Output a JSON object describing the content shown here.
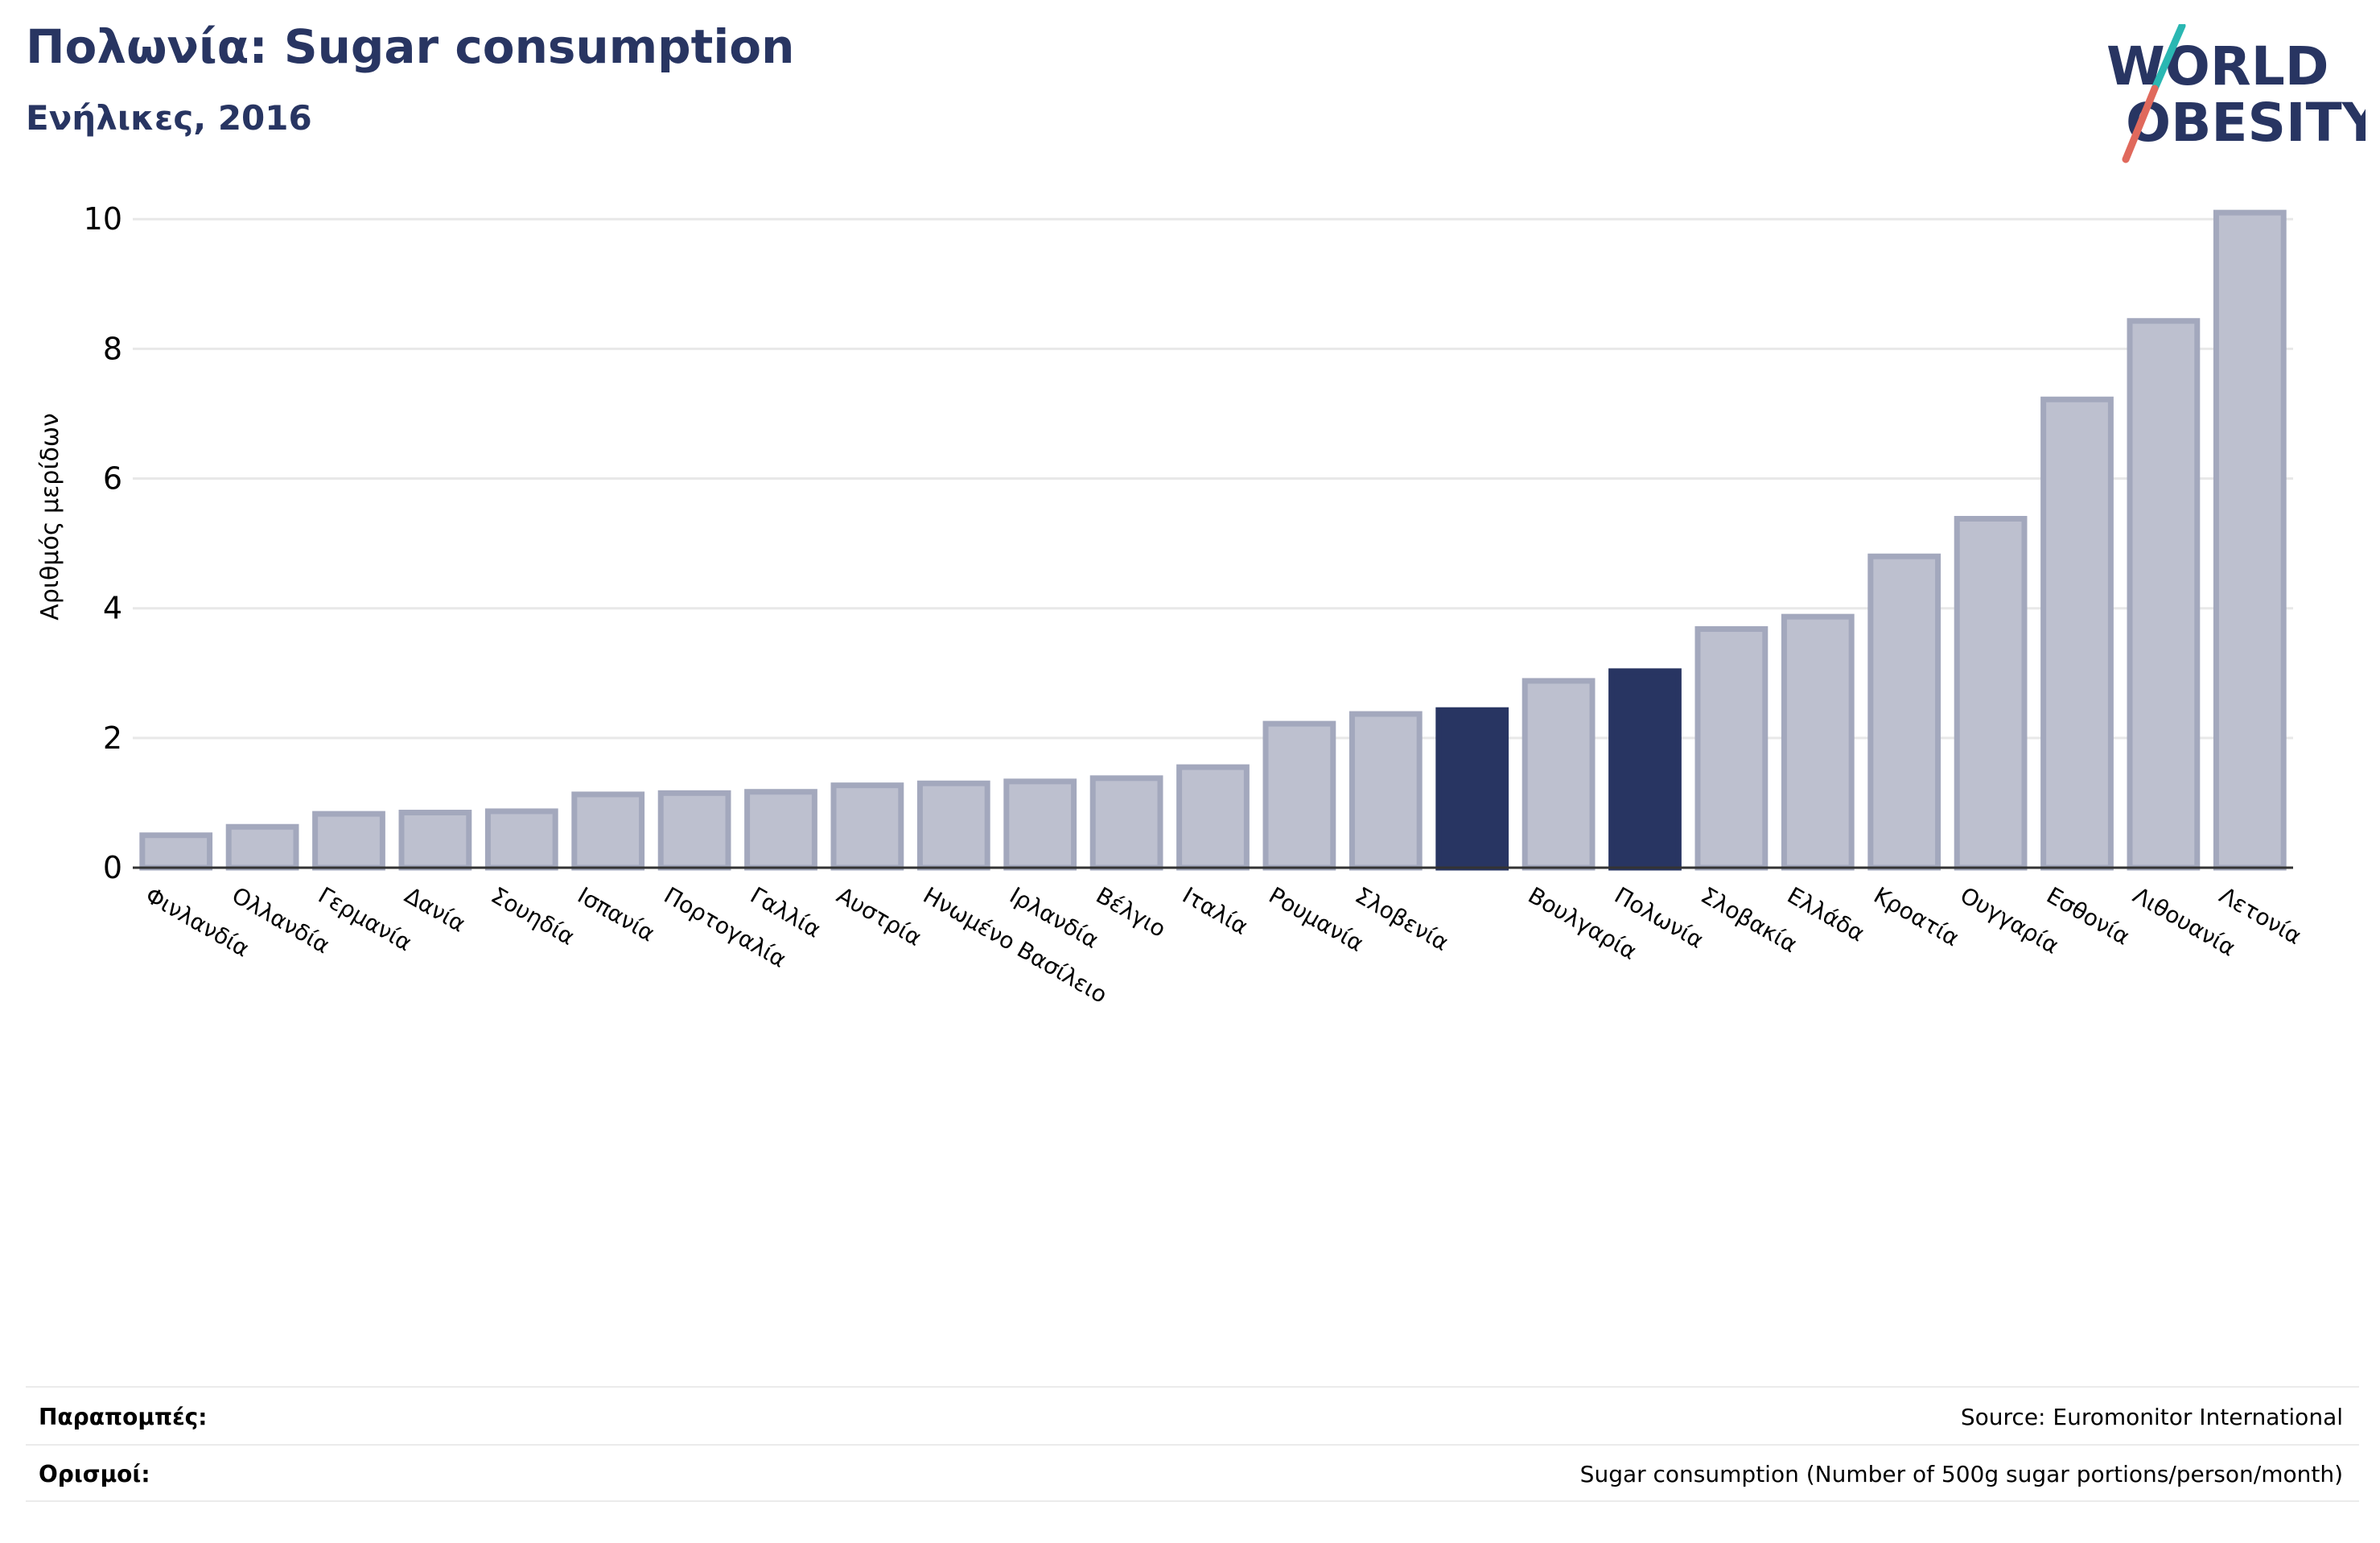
{
  "header": {
    "title": "Πολωνία: Sugar consumption",
    "subtitle": "Ενήλικες, 2016"
  },
  "logo": {
    "line1": "WORLD",
    "line2": "OBESITY",
    "colors": {
      "text": "#283562",
      "slash_top": "#2ab7b2",
      "slash_bottom": "#e0695c"
    }
  },
  "colors": {
    "bar_default": "#bdc0cf",
    "bar_default_stroke": "#a3a8bd",
    "bar_highlight": "#283562",
    "grid": "#e8e8e8",
    "axis": "#333333"
  },
  "chart_data": {
    "type": "bar",
    "title": "Πολωνία: Sugar consumption",
    "subtitle": "Ενήλικες, 2016",
    "ylabel": "Αριθμός μερίδων",
    "xlabel": "",
    "ylim": [
      0,
      10.4
    ],
    "yticks": [
      0,
      2,
      4,
      6,
      8,
      10
    ],
    "grid": true,
    "categories": [
      "Φινλανδία",
      "Ολλανδία",
      "Γερμανία",
      "Δανία",
      "Σουηδία",
      "Ισπανία",
      "Πορτογαλία",
      "Γαλλία",
      "Αυστρία",
      "Ηνωμένο Βασίλειο",
      "Ιρλανδία",
      "Βέλγιο",
      "Ιταλία",
      "Ρουμανία",
      "Σλοβενία",
      "",
      "Βουλγαρία",
      "Πολωνία",
      "Σλοβακία",
      "Ελλάδα",
      "Κροατία",
      "Ουγγαρία",
      "Εσθονία",
      "Λιθουανία",
      "Λετονία"
    ],
    "values": [
      0.5,
      0.63,
      0.83,
      0.85,
      0.87,
      1.13,
      1.15,
      1.17,
      1.27,
      1.3,
      1.33,
      1.38,
      1.55,
      2.22,
      2.37,
      2.43,
      2.88,
      3.03,
      3.68,
      3.87,
      4.8,
      5.38,
      7.22,
      8.43,
      10.1
    ],
    "highlight": [
      false,
      false,
      false,
      false,
      false,
      false,
      false,
      false,
      false,
      false,
      false,
      false,
      false,
      false,
      false,
      true,
      false,
      true,
      false,
      false,
      false,
      false,
      false,
      false,
      false
    ]
  },
  "footer": {
    "references_label": "Παραπομπές:",
    "references_value": "Source: Euromonitor International",
    "definitions_label": "Ορισμοί:",
    "definitions_value": "Sugar consumption (Number of 500g sugar portions/person/month)"
  }
}
